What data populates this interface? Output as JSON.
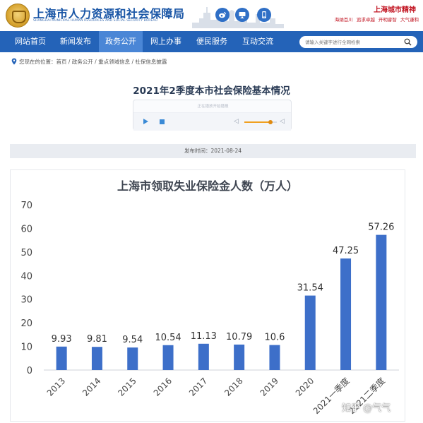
{
  "header": {
    "title": "上海市人力资源和社会保障局",
    "subtitle": "SHANGHAI MUNICIPAL HUMAN RESOURCES AND SOCIAL SECURITY BUREAU",
    "icons": [
      "weibo-icon",
      "computer-icon",
      "mobile-icon"
    ],
    "spirit_title": "上海城市精神",
    "spirit_items": [
      "海纳百川",
      "追求卓越",
      "开明睿智",
      "大气谦和"
    ]
  },
  "nav": {
    "items": [
      "网站首页",
      "新闻发布",
      "政务公开",
      "网上办事",
      "便民服务",
      "互动交流"
    ],
    "active_index": 2,
    "search_placeholder": "请输入关键字进行全网检索"
  },
  "breadcrumb": {
    "prefix": "您现在的位置：",
    "path": "首页 / 政务公开 / 重点领域信息 / 社保信息披露"
  },
  "article": {
    "title": "2021年2季度本市社会保险基本情况",
    "player_hint": "正在播放开始播报",
    "volume": 0.8,
    "publish_time": "发布时间：2021-08-24"
  },
  "watermark": "知乎 @气气",
  "colors": {
    "brand": "#2463b8",
    "bar": "#3d6fc9",
    "accent": "#c1121f"
  },
  "chart_data": {
    "type": "bar",
    "title": "上海市领取失业保险金人数（万人）",
    "categories": [
      "2013",
      "2014",
      "2015",
      "2016",
      "2017",
      "2018",
      "2019",
      "2020",
      "2021一季度",
      "2021二季度"
    ],
    "values": [
      9.93,
      9.81,
      9.54,
      10.54,
      11.13,
      10.79,
      10.6,
      31.54,
      47.25,
      57.26
    ],
    "value_labels": [
      "9.93",
      "9.81",
      "9.54",
      "10.54",
      "11.13",
      "10.79",
      "10.6",
      "31.54",
      "47.25",
      "57.26"
    ],
    "ylim": [
      0,
      70
    ],
    "yticks": [
      0,
      10,
      20,
      30,
      40,
      50,
      60,
      70
    ],
    "xlabel": "",
    "ylabel": "",
    "grid": false
  }
}
